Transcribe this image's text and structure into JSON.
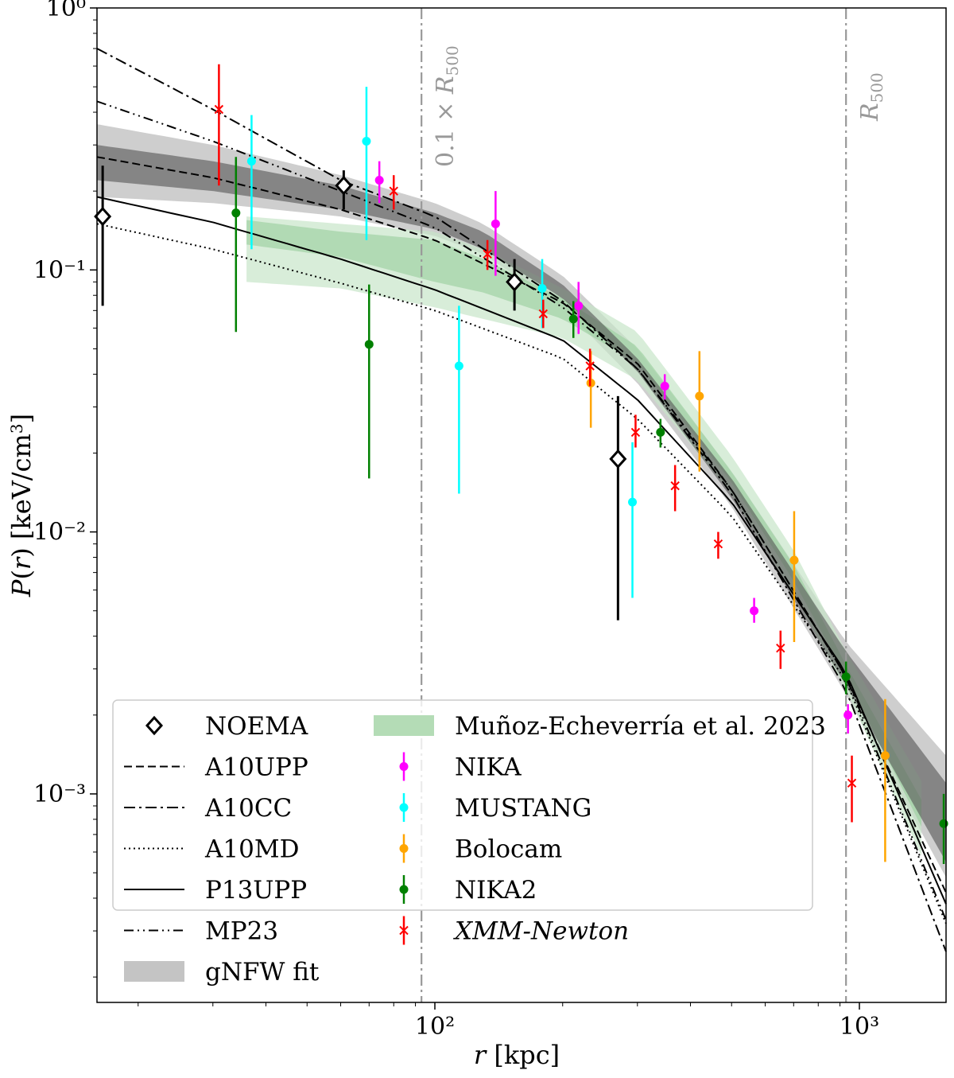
{
  "chart_data": {
    "type": "scatter",
    "x_scale": "log",
    "y_scale": "log",
    "xlim": [
      16,
      1600
    ],
    "ylim": [
      0.00016,
      1.0
    ],
    "xlabel": "r [kpc]",
    "ylabel": "P(r) [keV/cm³]",
    "x_ticks": [
      {
        "value": 100,
        "label": "10²"
      },
      {
        "value": 1000,
        "label": "10³"
      }
    ],
    "y_ticks": [
      {
        "value": 1.0,
        "label": "10⁰"
      },
      {
        "value": 0.1,
        "label": "10⁻¹"
      },
      {
        "value": 0.01,
        "label": "10⁻²"
      },
      {
        "value": 0.001,
        "label": "10⁻³"
      }
    ],
    "vertical_lines": [
      {
        "x": 93,
        "label": "0.1 × R500"
      },
      {
        "x": 930,
        "label": "R500"
      }
    ],
    "models": [
      {
        "name": "A10UPP",
        "style": "dashed",
        "points": [
          [
            16,
            0.27
          ],
          [
            30,
            0.225
          ],
          [
            60,
            0.17
          ],
          [
            100,
            0.13
          ],
          [
            200,
            0.075
          ],
          [
            300,
            0.044
          ],
          [
            500,
            0.0145
          ],
          [
            930,
            0.0028
          ],
          [
            1600,
            0.00042
          ]
        ]
      },
      {
        "name": "A10CC",
        "style": "dashdot",
        "points": [
          [
            16,
            0.7
          ],
          [
            30,
            0.41
          ],
          [
            60,
            0.22
          ],
          [
            100,
            0.16
          ],
          [
            200,
            0.076
          ],
          [
            300,
            0.042
          ],
          [
            500,
            0.014
          ],
          [
            930,
            0.0025
          ],
          [
            1600,
            0.00025
          ]
        ]
      },
      {
        "name": "A10MD",
        "style": "dotted",
        "points": [
          [
            16,
            0.15
          ],
          [
            30,
            0.12
          ],
          [
            60,
            0.089
          ],
          [
            100,
            0.07
          ],
          [
            200,
            0.046
          ],
          [
            300,
            0.027
          ],
          [
            500,
            0.0115
          ],
          [
            930,
            0.0027
          ],
          [
            1600,
            0.00032
          ]
        ]
      },
      {
        "name": "P13UPP",
        "style": "solid",
        "points": [
          [
            16,
            0.19
          ],
          [
            30,
            0.152
          ],
          [
            60,
            0.11
          ],
          [
            100,
            0.084
          ],
          [
            200,
            0.054
          ],
          [
            300,
            0.032
          ],
          [
            500,
            0.013
          ],
          [
            930,
            0.0029
          ],
          [
            1600,
            0.00038
          ]
        ]
      },
      {
        "name": "MP23",
        "style": "dashdotdot",
        "points": [
          [
            16,
            0.44
          ],
          [
            30,
            0.31
          ],
          [
            60,
            0.2
          ],
          [
            100,
            0.145
          ],
          [
            200,
            0.072
          ],
          [
            300,
            0.042
          ],
          [
            500,
            0.0145
          ],
          [
            930,
            0.0028
          ],
          [
            1600,
            0.00033
          ]
        ]
      }
    ],
    "gnfw_band": {
      "x": [
        16,
        30,
        60,
        100,
        130,
        200,
        300,
        500,
        930,
        1600
      ],
      "inner_lower": [
        0.22,
        0.2,
        0.17,
        0.143,
        0.12,
        0.078,
        0.041,
        0.0135,
        0.0026,
        0.00055
      ],
      "inner_upper": [
        0.3,
        0.26,
        0.21,
        0.165,
        0.14,
        0.088,
        0.046,
        0.016,
        0.0035,
        0.0011
      ],
      "outer_lower": [
        0.19,
        0.18,
        0.16,
        0.135,
        0.115,
        0.072,
        0.037,
        0.0125,
        0.0024,
        0.00048
      ],
      "outer_upper": [
        0.36,
        0.3,
        0.23,
        0.18,
        0.15,
        0.095,
        0.05,
        0.017,
        0.0038,
        0.0014
      ]
    },
    "munoz_band": {
      "x": [
        36,
        60,
        100,
        130,
        200,
        300,
        500,
        700,
        930,
        1400
      ],
      "inner_lower": [
        0.125,
        0.112,
        0.09,
        0.082,
        0.065,
        0.044,
        0.0155,
        0.0065,
        0.0028,
        0.00075
      ],
      "inner_upper": [
        0.155,
        0.14,
        0.13,
        0.11,
        0.078,
        0.051,
        0.017,
        0.0075,
        0.0031,
        0.00095
      ],
      "outer_lower": [
        0.09,
        0.085,
        0.072,
        0.065,
        0.055,
        0.038,
        0.014,
        0.0058,
        0.0025,
        0.00058
      ],
      "outer_upper": [
        0.16,
        0.15,
        0.14,
        0.12,
        0.085,
        0.058,
        0.0195,
        0.0085,
        0.0035,
        0.00112
      ]
    },
    "datasets": [
      {
        "name": "NOEMA",
        "marker": "diamond",
        "color": "#000000",
        "points": [
          {
            "x": 16.5,
            "y": 0.16,
            "ylo": 0.073,
            "yhi": 0.25
          },
          {
            "x": 61,
            "y": 0.21,
            "ylo": 0.17,
            "yhi": 0.24
          },
          {
            "x": 154,
            "y": 0.09,
            "ylo": 0.07,
            "yhi": 0.11
          },
          {
            "x": 270,
            "y": 0.019,
            "ylo": 0.0046,
            "yhi": 0.033
          }
        ]
      },
      {
        "name": "NIKA",
        "marker": "dot",
        "color": "#ff00ff",
        "points": [
          {
            "x": 74,
            "y": 0.22,
            "ylo": 0.18,
            "yhi": 0.26
          },
          {
            "x": 139,
            "y": 0.15,
            "ylo": 0.095,
            "yhi": 0.2
          },
          {
            "x": 218,
            "y": 0.073,
            "ylo": 0.057,
            "yhi": 0.09
          },
          {
            "x": 348,
            "y": 0.036,
            "ylo": 0.032,
            "yhi": 0.04
          },
          {
            "x": 565,
            "y": 0.005,
            "ylo": 0.0045,
            "yhi": 0.0056
          },
          {
            "x": 940,
            "y": 0.002,
            "ylo": 0.0017,
            "yhi": 0.0022
          }
        ]
      },
      {
        "name": "MUSTANG",
        "marker": "dot",
        "color": "#00ffff",
        "points": [
          {
            "x": 37,
            "y": 0.26,
            "ylo": 0.12,
            "yhi": 0.39
          },
          {
            "x": 69,
            "y": 0.31,
            "ylo": 0.13,
            "yhi": 0.5
          },
          {
            "x": 114,
            "y": 0.043,
            "ylo": 0.014,
            "yhi": 0.073
          },
          {
            "x": 179,
            "y": 0.085,
            "ylo": 0.06,
            "yhi": 0.11
          },
          {
            "x": 292,
            "y": 0.013,
            "ylo": 0.0056,
            "yhi": 0.022
          }
        ]
      },
      {
        "name": "Bolocam",
        "marker": "dot",
        "color": "#ffa500",
        "points": [
          {
            "x": 233,
            "y": 0.037,
            "ylo": 0.025,
            "yhi": 0.049
          },
          {
            "x": 420,
            "y": 0.033,
            "ylo": 0.017,
            "yhi": 0.049
          },
          {
            "x": 702,
            "y": 0.0078,
            "ylo": 0.0038,
            "yhi": 0.012
          },
          {
            "x": 1150,
            "y": 0.0014,
            "ylo": 0.00055,
            "yhi": 0.0023
          }
        ]
      },
      {
        "name": "NIKA2",
        "marker": "dot",
        "color": "#008000",
        "points": [
          {
            "x": 34,
            "y": 0.165,
            "ylo": 0.058,
            "yhi": 0.27
          },
          {
            "x": 70,
            "y": 0.052,
            "ylo": 0.016,
            "yhi": 0.088
          },
          {
            "x": 212,
            "y": 0.065,
            "ylo": 0.055,
            "yhi": 0.076
          },
          {
            "x": 340,
            "y": 0.024,
            "ylo": 0.021,
            "yhi": 0.027
          },
          {
            "x": 930,
            "y": 0.0028,
            "ylo": 0.0024,
            "yhi": 0.0032
          },
          {
            "x": 1580,
            "y": 0.00077,
            "ylo": 0.00054,
            "yhi": 0.001
          }
        ]
      },
      {
        "name": "XMM-Newton",
        "marker": "x",
        "color": "#ff0000",
        "points": [
          {
            "x": 31,
            "y": 0.41,
            "ylo": 0.21,
            "yhi": 0.61
          },
          {
            "x": 80,
            "y": 0.2,
            "ylo": 0.17,
            "yhi": 0.23
          },
          {
            "x": 133,
            "y": 0.115,
            "ylo": 0.1,
            "yhi": 0.13
          },
          {
            "x": 180,
            "y": 0.068,
            "ylo": 0.06,
            "yhi": 0.077
          },
          {
            "x": 232,
            "y": 0.043,
            "ylo": 0.036,
            "yhi": 0.05
          },
          {
            "x": 297,
            "y": 0.024,
            "ylo": 0.021,
            "yhi": 0.028
          },
          {
            "x": 368,
            "y": 0.015,
            "ylo": 0.012,
            "yhi": 0.018
          },
          {
            "x": 465,
            "y": 0.009,
            "ylo": 0.0079,
            "yhi": 0.01
          },
          {
            "x": 652,
            "y": 0.0036,
            "ylo": 0.003,
            "yhi": 0.0042
          },
          {
            "x": 960,
            "y": 0.0011,
            "ylo": 0.00078,
            "yhi": 0.0014
          }
        ]
      }
    ],
    "legend": {
      "placement": "lower-left",
      "columns": [
        [
          "NOEMA",
          "A10UPP",
          "A10CC",
          "A10MD",
          "P13UPP",
          "MP23",
          "gNFW fit"
        ],
        [
          "Muñoz-Echeverría et al. 2023",
          "NIKA",
          "MUSTANG",
          "Bolocam",
          "NIKA2",
          "XMM-Newton"
        ]
      ]
    }
  }
}
